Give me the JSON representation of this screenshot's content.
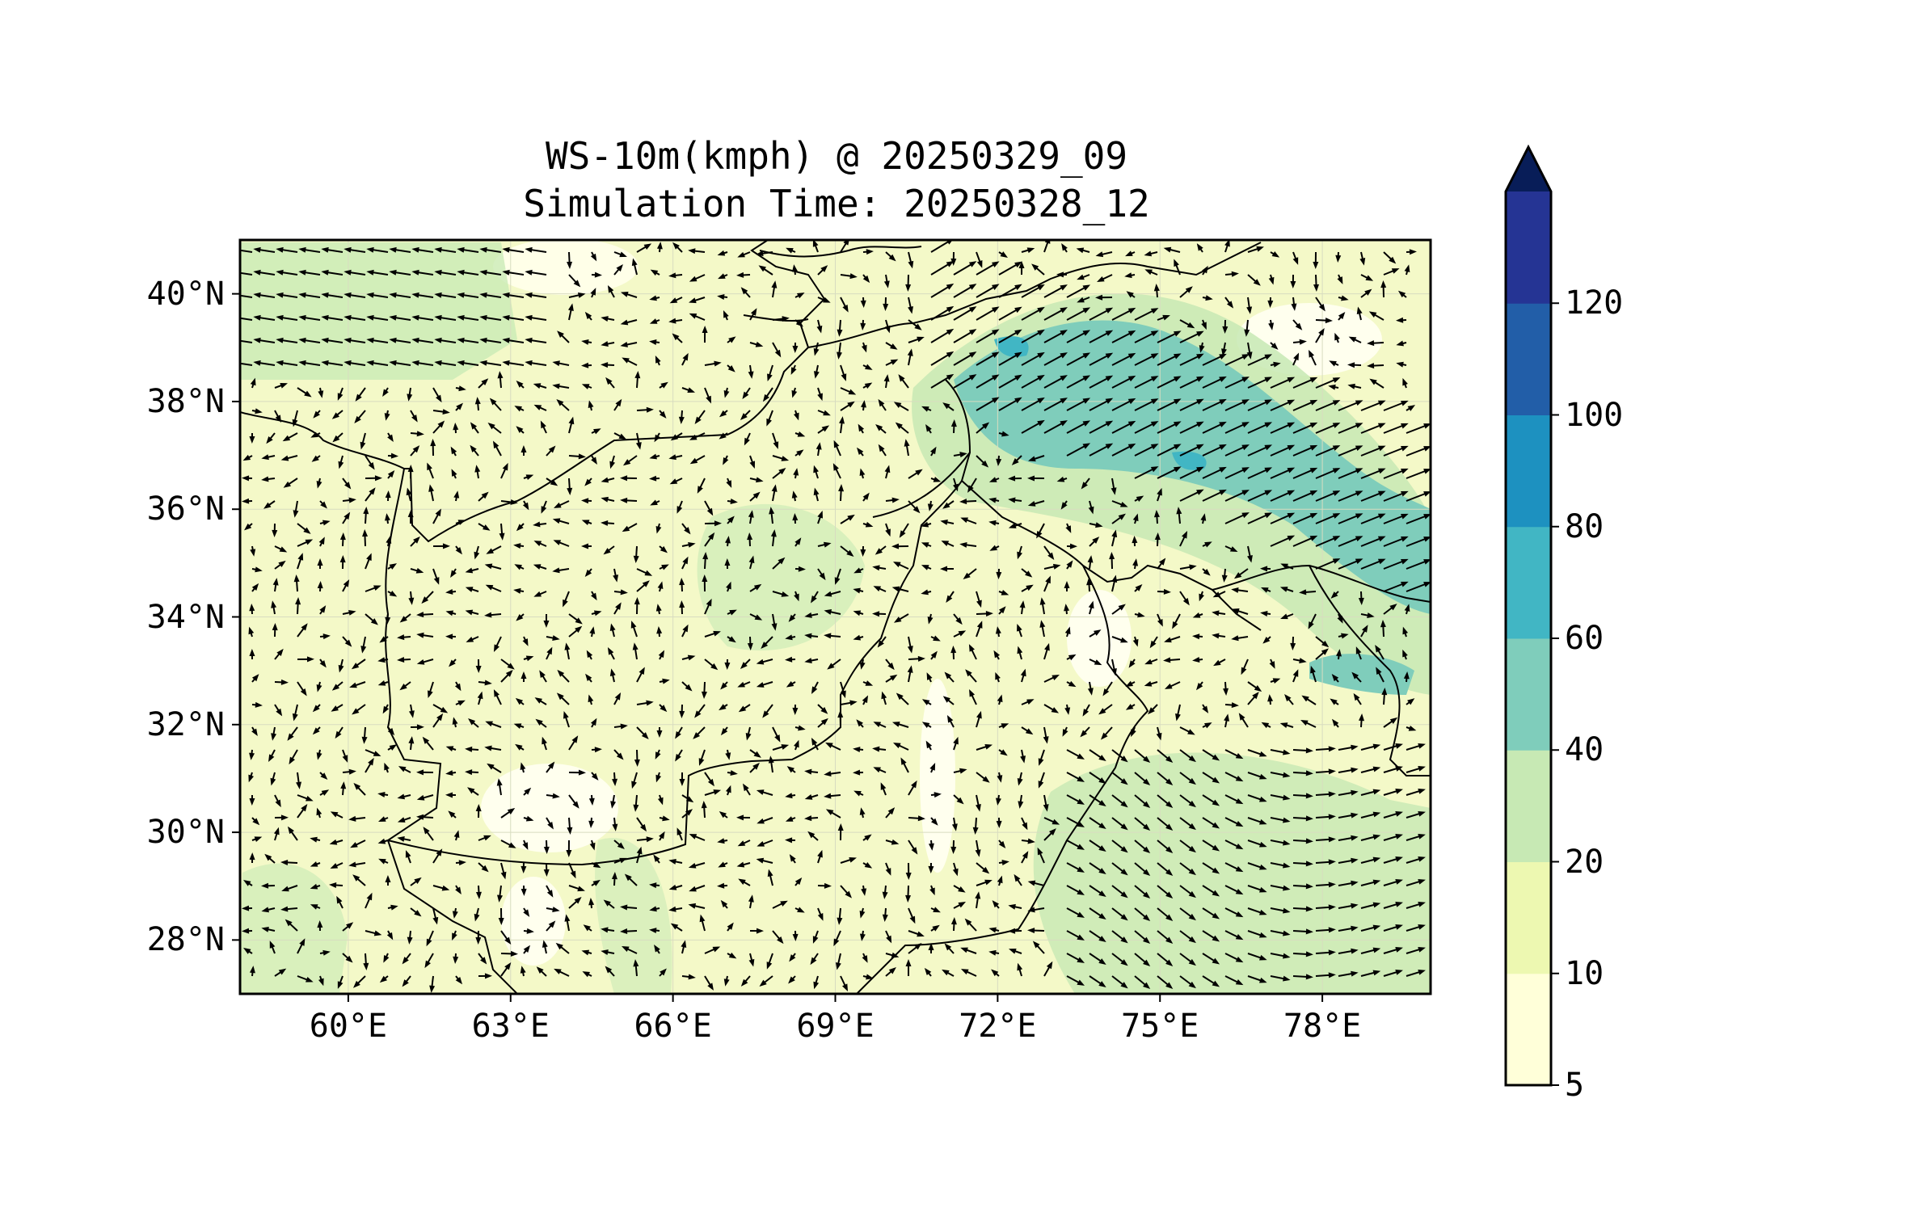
{
  "title": {
    "line1": "WS-10m(kmph) @ 20250329_09",
    "line2": "Simulation Time: 20250328_12"
  },
  "map": {
    "lon_range": [
      58,
      80
    ],
    "lat_range": [
      27,
      41
    ],
    "lat_ticks": [
      "40°N",
      "38°N",
      "36°N",
      "34°N",
      "32°N",
      "30°N",
      "28°N"
    ],
    "lat_values": [
      40,
      38,
      36,
      34,
      32,
      30,
      28
    ],
    "lon_ticks": [
      "60°E",
      "63°E",
      "66°E",
      "69°E",
      "72°E",
      "75°E",
      "78°E"
    ],
    "lon_values": [
      60,
      63,
      66,
      69,
      72,
      75,
      78
    ]
  },
  "colorbar": {
    "levels": [
      "5",
      "10",
      "20",
      "40",
      "60",
      "80",
      "100",
      "120"
    ],
    "level_values": [
      5,
      10,
      20,
      40,
      60,
      80,
      100,
      120
    ],
    "colors": [
      "#ffffd9",
      "#edf8b1",
      "#c7e9b4",
      "#7fcdbb",
      "#41b6c4",
      "#1d91c0",
      "#225ea8",
      "#253494"
    ],
    "extend_color": "#081d58",
    "extend": "max"
  }
}
